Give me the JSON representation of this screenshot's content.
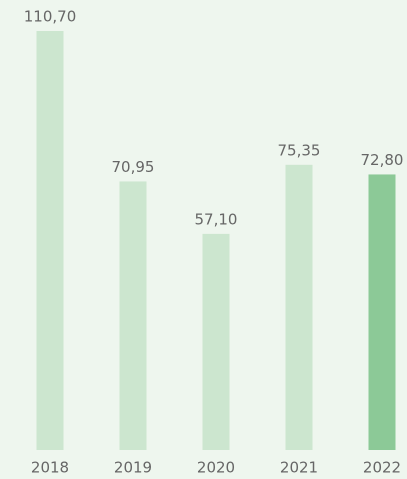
{
  "chart_data": {
    "type": "bar",
    "categories": [
      "2018",
      "2019",
      "2020",
      "2021",
      "2022"
    ],
    "values": [
      110.7,
      70.95,
      57.1,
      75.35,
      72.8
    ],
    "value_labels": [
      "110,70",
      "70,95",
      "57,10",
      "75,35",
      "72,80"
    ],
    "colors": [
      "#cce6cf",
      "#cce6cf",
      "#cce6cf",
      "#cce6cf",
      "#8cc997"
    ]
  }
}
